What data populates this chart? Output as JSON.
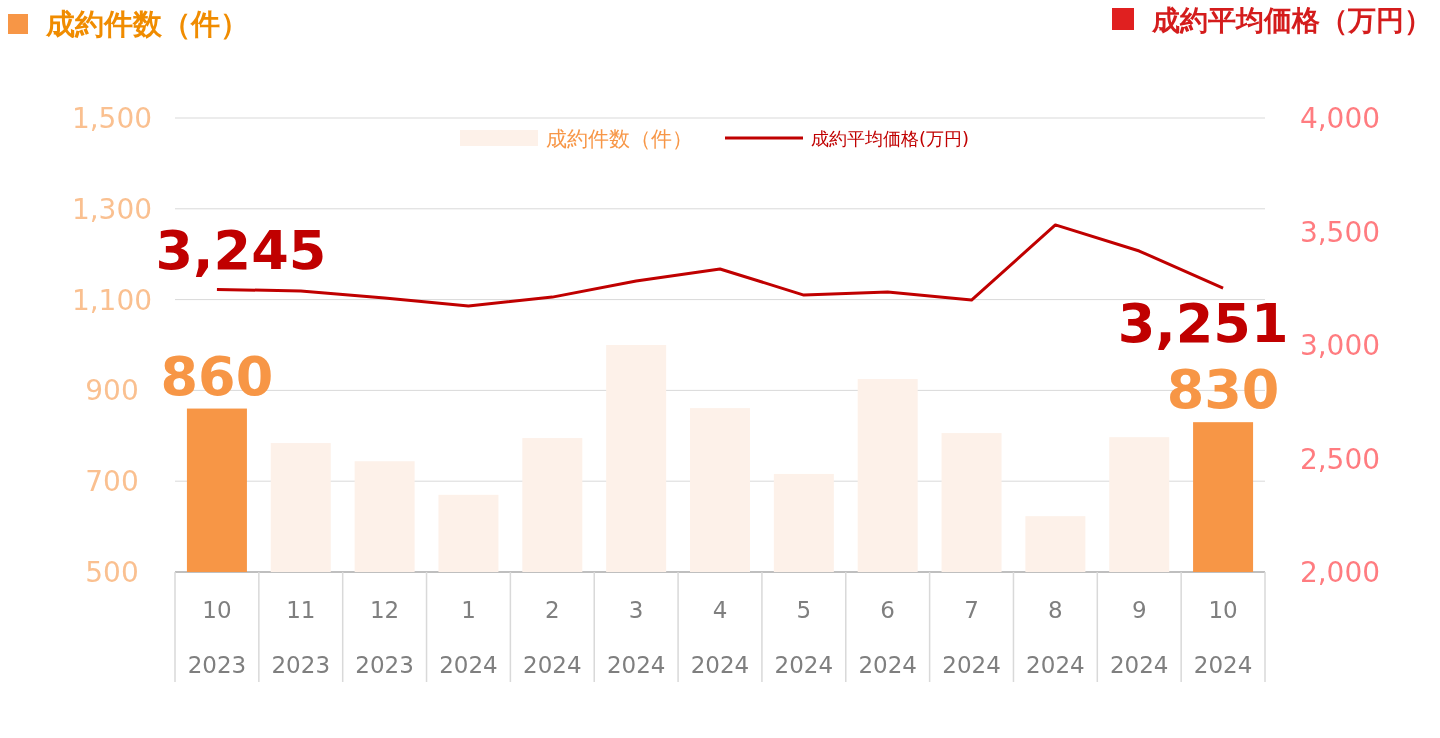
{
  "chart_data": {
    "type": "bar",
    "ylabel": "成約件数（件）",
    "y2label": "成約平均価格（万円）",
    "categories": [
      "10\n2023",
      "11\n2023",
      "12\n2023",
      "1\n2024",
      "2\n2024",
      "3\n2024",
      "4\n2024",
      "5\n2024",
      "6\n2024",
      "7\n2024",
      "8\n2024",
      "9\n2024",
      "10\n2024"
    ],
    "series": [
      {
        "name": "成約件数（件）",
        "color": "#fdf1e9",
        "colors": [
          "#f79646",
          "#fdf1e9",
          "#fdf1e9",
          "#fdf1e9",
          "#fdf1e9",
          "#fdf1e9",
          "#fdf1e9",
          "#fdf1e9",
          "#fdf1e9",
          "#fdf1e9",
          "#fdf1e9",
          "#fdf1e9",
          "#f79646"
        ],
        "values": [
          860,
          784,
          744,
          670,
          795,
          1000,
          861,
          716,
          925,
          806,
          623,
          797,
          830
        ],
        "value_labels": [
          "860",
          null,
          null,
          null,
          null,
          null,
          null,
          null,
          null,
          null,
          null,
          null,
          "830"
        ]
      },
      {
        "name": "成約平均価格(万円)",
        "type": "line",
        "axis": "y2",
        "color": "#c00000",
        "values": [
          3245,
          3238,
          3207,
          3172,
          3211,
          3282,
          3335,
          3220,
          3233,
          3198,
          3529,
          3414,
          3251
        ],
        "value_labels": [
          "3,245",
          null,
          null,
          null,
          null,
          null,
          null,
          null,
          null,
          null,
          null,
          null,
          "3,251"
        ]
      }
    ],
    "ylim": [
      500,
      1500
    ],
    "yticks": [
      {
        "value": 500,
        "label": "500"
      },
      {
        "value": 700,
        "label": "700"
      },
      {
        "value": 900,
        "label": "900"
      },
      {
        "value": 1100,
        "label": "1,100"
      },
      {
        "value": 1300,
        "label": "1,300"
      },
      {
        "value": 1500,
        "label": "1,500"
      }
    ],
    "y2lim": [
      2000,
      4000
    ],
    "y2ticks": [
      {
        "value": 2000,
        "label": "2,000"
      },
      {
        "value": 2500,
        "label": "2,500"
      },
      {
        "value": 3000,
        "label": "3,000"
      },
      {
        "value": 3500,
        "label": "3,500"
      },
      {
        "value": 4000,
        "label": "4,000"
      }
    ],
    "grid": "y",
    "legend": "top"
  }
}
